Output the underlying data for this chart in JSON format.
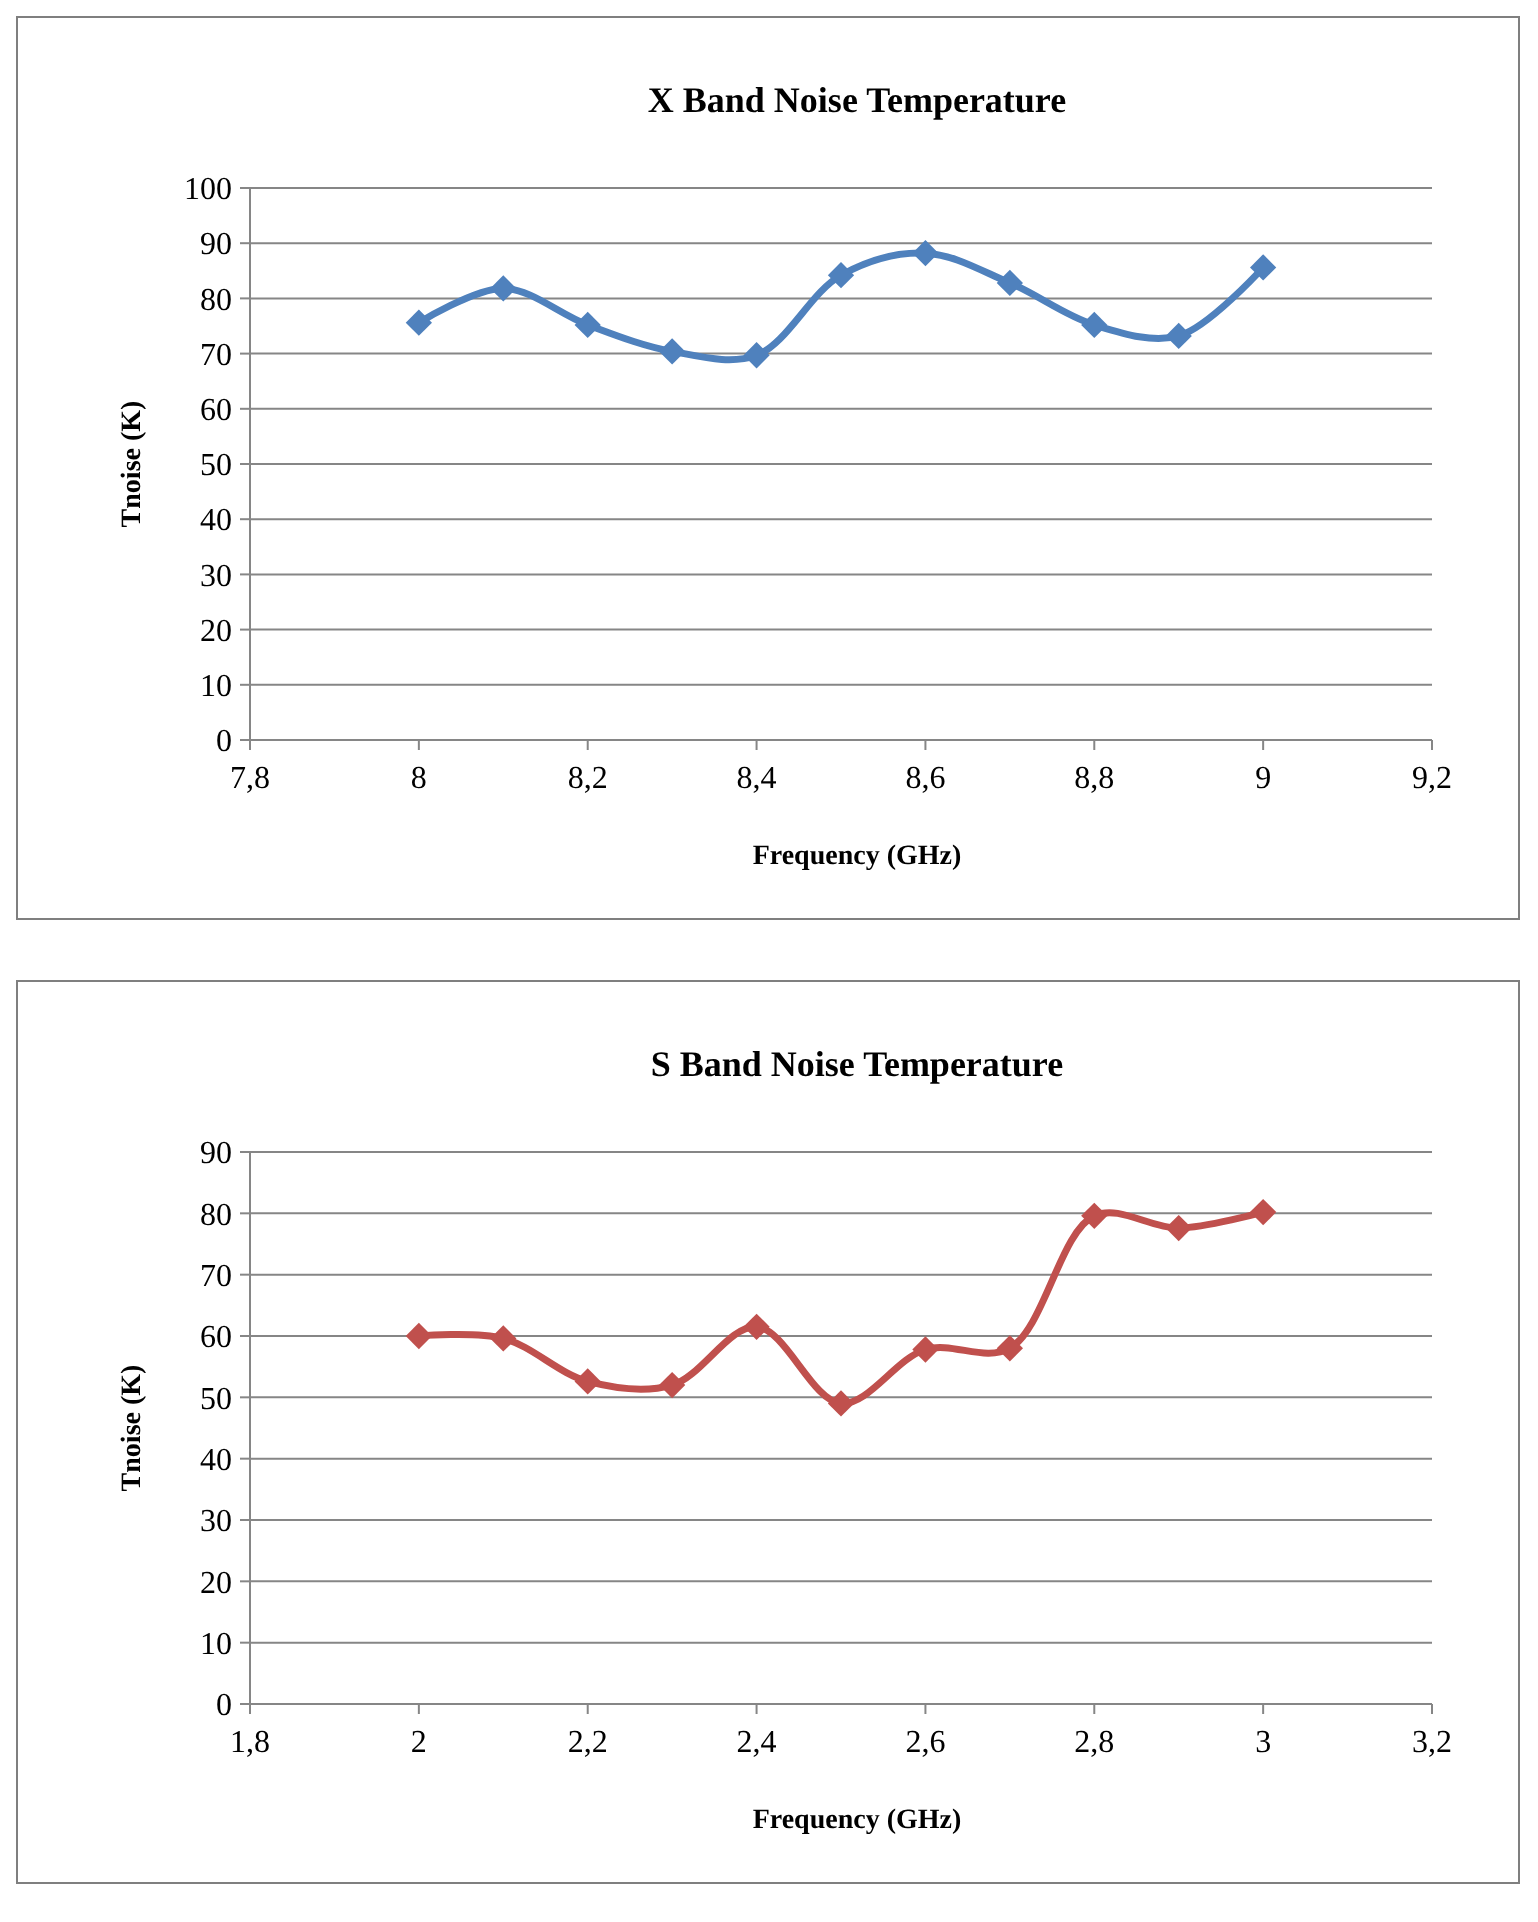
{
  "chart_data": [
    {
      "type": "line",
      "title": "X Band Noise Temperature",
      "xlabel": "Frequency (GHz)",
      "ylabel": "Tnoise (K)",
      "x": [
        8,
        8.1,
        8.2,
        8.3,
        8.4,
        8.5,
        8.6,
        8.7,
        8.8,
        8.9,
        9
      ],
      "series": [
        {
          "color": "#4f81bd",
          "values": [
            75.6,
            81.8,
            75.2,
            70.4,
            69.7,
            84.2,
            88.2,
            82.8,
            75.2,
            73.2,
            85.6
          ]
        }
      ],
      "xlim": [
        7.8,
        9.2
      ],
      "xticks": [
        {
          "value": 7.8,
          "label": "7,8"
        },
        8,
        {
          "value": 8.2,
          "label": "8,2"
        },
        {
          "value": 8.4,
          "label": "8,4"
        },
        {
          "value": 8.6,
          "label": "8,6"
        },
        {
          "value": 8.8,
          "label": "8,8"
        },
        9,
        {
          "value": 9.2,
          "label": "9,2"
        }
      ],
      "ylim": [
        0,
        100
      ],
      "yticks": [
        0,
        10,
        20,
        30,
        40,
        50,
        60,
        70,
        80,
        90,
        100
      ],
      "grid": "y",
      "marker": "diamond",
      "line_style": "solid"
    },
    {
      "type": "line",
      "title": "S Band Noise Temperature",
      "xlabel": "Frequency (GHz)",
      "ylabel": "Tnoise (K)",
      "x": [
        2,
        2.1,
        2.2,
        2.3,
        2.4,
        2.5,
        2.6,
        2.7,
        2.8,
        2.9,
        3
      ],
      "series": [
        {
          "color": "#c0504d",
          "values": [
            60,
            59.6,
            52.6,
            52,
            61.5,
            49,
            57.8,
            58,
            79.6,
            77.6,
            80.2
          ]
        }
      ],
      "xlim": [
        1.8,
        3.2
      ],
      "xticks": [
        {
          "value": 1.8,
          "label": "1,8"
        },
        2,
        {
          "value": 2.2,
          "label": "2,2"
        },
        {
          "value": 2.4,
          "label": "2,4"
        },
        {
          "value": 2.6,
          "label": "2,6"
        },
        {
          "value": 2.8,
          "label": "2,8"
        },
        3,
        {
          "value": 3.2,
          "label": "3,2"
        }
      ],
      "ylim": [
        0,
        90
      ],
      "yticks": [
        0,
        10,
        20,
        30,
        40,
        50,
        60,
        70,
        80,
        90
      ],
      "grid": "y",
      "marker": "diamond",
      "line_style": "solid"
    }
  ]
}
